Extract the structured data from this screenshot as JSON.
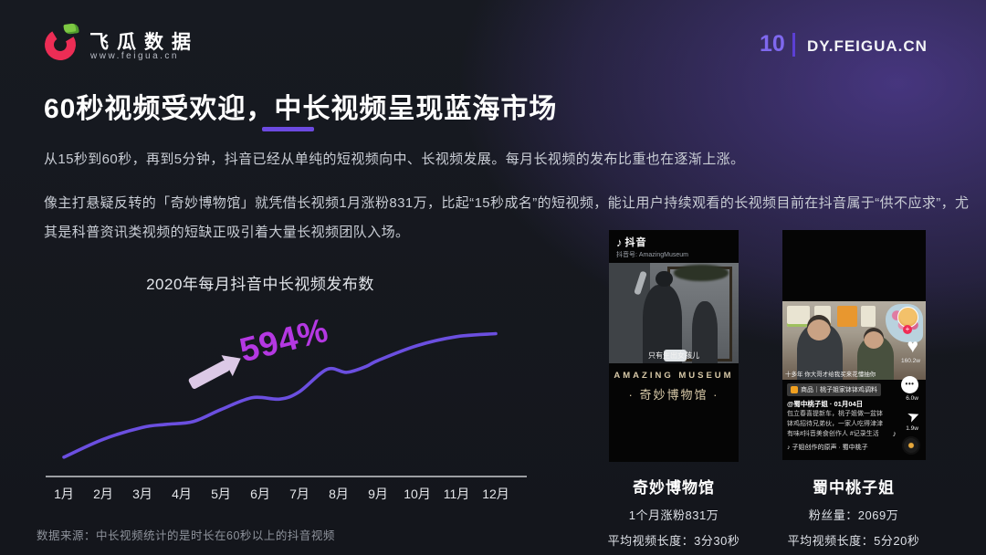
{
  "header": {
    "brand_name": "飞瓜数据",
    "brand_url": "www.feigua.cn",
    "page_number": "10",
    "site": "DY.FEIGUA.CN"
  },
  "title": "60秒视频受欢迎，中长视频呈现蓝海市场",
  "paragraphs": [
    "从15秒到60秒，再到5分钟，抖音已经从单纯的短视频向中、长视频发展。每月长视频的发布比重也在逐渐上涨。",
    "像主打悬疑反转的「奇妙博物馆」就凭借长视频1月涨粉831万，比起“15秒成名”的短视频，能让用户持续观看的长视频目前在抖音属于“供不应求”，尤其是科普资讯类视频的短缺正吸引着大量长视频团队入场。"
  ],
  "chart_data": {
    "type": "line",
    "title": "2020年每月抖音中长视频发布数",
    "categories": [
      "1月",
      "2月",
      "3月",
      "4月",
      "5月",
      "6月",
      "7月",
      "8月",
      "9月",
      "10月",
      "11月",
      "12月"
    ],
    "values_relative": [
      13,
      25,
      33,
      37,
      45,
      53,
      57,
      71,
      78,
      88,
      94,
      96
    ],
    "curve_points": [
      [
        1,
        13
      ],
      [
        2,
        25
      ],
      [
        3,
        33
      ],
      [
        3.6,
        35
      ],
      [
        4.3,
        37
      ],
      [
        5,
        45
      ],
      [
        5.8,
        53
      ],
      [
        6.5,
        52
      ],
      [
        7,
        57
      ],
      [
        7.7,
        72
      ],
      [
        8.2,
        70
      ],
      [
        8.7,
        74
      ],
      [
        9,
        78
      ],
      [
        10,
        88
      ],
      [
        11,
        94
      ],
      [
        12,
        96
      ]
    ],
    "annotation": "594%",
    "ylabel": "",
    "xlabel": "",
    "grid": false,
    "legend": false,
    "line_color": "#6b4fe0",
    "annotation_color": "#b438e2",
    "arrow_color": "#dcc9e6",
    "axis_color": "#c9cbce"
  },
  "footnote": "数据来源：中长视频统计的是时长在60秒以上的抖音视频",
  "cards": [
    {
      "platform": "抖音",
      "account_line": "抖音号: AmazingMuseum",
      "video_caption": "只有生出女孩儿",
      "overlay_title_en": "AMAZING MUSEUM",
      "overlay_title_cn": "· 奇妙博物馆 ·",
      "name": "奇妙博物馆",
      "stats": [
        "1个月涨粉831万",
        "平均视频长度：3分30秒"
      ]
    },
    {
      "video_caption": "十多年 你大哥才给我买来花懂抽你",
      "likes": "160.2w",
      "comments": "6.0w",
      "shares": "1.9w",
      "follow_plus": "+",
      "comment_dots": "•••",
      "product_tag": "商品｜桃子姐家钵钵鸡调料",
      "author_line": "@蜀中桃子姐 · 01月04日",
      "post_text": "包立春喜提新车，桃子姐做一盆钵钵鸡招待兄弟伙，一家人吃得津津有味#抖音美食创作人 #记录生活",
      "music_line": "♪ 子姐创作的原声 · 蜀中桃子",
      "name": "蜀中桃子姐",
      "stats": [
        "粉丝量：2069万",
        "平均视频长度：5分20秒"
      ]
    }
  ]
}
